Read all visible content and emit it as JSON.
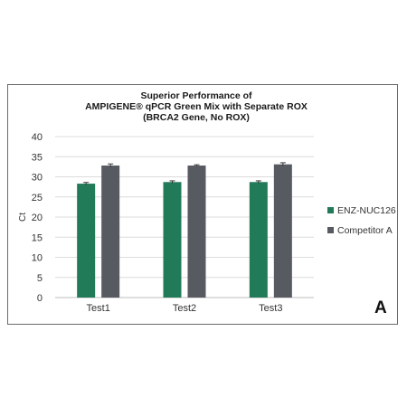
{
  "chart_data": {
    "type": "bar",
    "title": [
      "Superior Performance of",
      "AMPIGENE® qPCR Green Mix with Separate ROX",
      "(BRCA2 Gene, No ROX)"
    ],
    "xlabel": "",
    "ylabel": "Ct",
    "categories": [
      "Test1",
      "Test2",
      "Test3"
    ],
    "series": [
      {
        "name": "ENZ-NUC126",
        "values": [
          28.3,
          28.7,
          28.7
        ],
        "error": [
          0.3,
          0.3,
          0.3
        ],
        "color": "#217a58"
      },
      {
        "name": "Competitor A",
        "values": [
          32.8,
          32.8,
          33.1
        ],
        "error": [
          0.4,
          0.2,
          0.4
        ],
        "color": "#575a61"
      }
    ],
    "ylim": [
      0,
      40
    ],
    "yticks": [
      0,
      5,
      10,
      15,
      20,
      25,
      30,
      35,
      40
    ],
    "grid": true,
    "legend_position": "right",
    "panel_label": "A"
  }
}
